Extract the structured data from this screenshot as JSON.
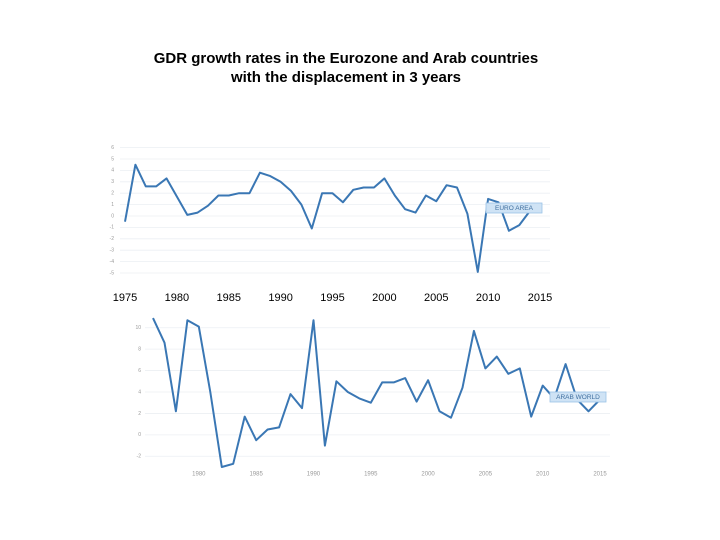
{
  "title": [
    "GDR growth rates in the Eurozone and Arab countries",
    "with the displacement in 3 years"
  ],
  "chart_data": [
    {
      "type": "line",
      "x": [
        1975,
        1976,
        1977,
        1978,
        1979,
        1980,
        1981,
        1982,
        1983,
        1984,
        1985,
        1986,
        1987,
        1988,
        1989,
        1990,
        1991,
        1992,
        1993,
        1994,
        1995,
        1996,
        1997,
        1998,
        1999,
        2000,
        2001,
        2002,
        2003,
        2004,
        2005,
        2006,
        2007,
        2008,
        2009,
        2010,
        2011,
        2012,
        2013,
        2014
      ],
      "series": [
        {
          "name": "EURO AREA",
          "color": "#3a77b4",
          "values": [
            -0.5,
            4.5,
            2.6,
            2.6,
            3.3,
            1.7,
            0.1,
            0.3,
            0.9,
            1.8,
            1.8,
            2.0,
            2.0,
            3.8,
            3.5,
            3.0,
            2.2,
            1.0,
            -1.1,
            2.0,
            2.0,
            1.2,
            2.3,
            2.5,
            2.5,
            3.3,
            1.8,
            0.6,
            0.3,
            1.8,
            1.3,
            2.7,
            2.5,
            0.2,
            -4.9,
            1.5,
            1.2,
            -1.3,
            -0.8,
            0.4
          ]
        }
      ],
      "xlim": [
        1975,
        2015
      ],
      "xticks": [
        1975,
        1980,
        1985,
        1990,
        1995,
        2000,
        2005,
        2010,
        2015
      ],
      "ylim": [
        -5,
        6
      ],
      "yticks": [
        -5,
        -4,
        -3,
        -2,
        -1,
        0,
        1,
        2,
        3,
        4,
        5,
        6
      ],
      "grid": true
    },
    {
      "type": "line",
      "x": [
        1976,
        1977,
        1978,
        1979,
        1980,
        1981,
        1982,
        1983,
        1984,
        1985,
        1986,
        1987,
        1988,
        1989,
        1990,
        1991,
        1992,
        1993,
        1994,
        1995,
        1996,
        1997,
        1998,
        1999,
        2000,
        2001,
        2002,
        2003,
        2004,
        2005,
        2006,
        2007,
        2008,
        2009,
        2010,
        2011,
        2012,
        2013,
        2014,
        2015
      ],
      "series": [
        {
          "name": "ARAB WORLD",
          "color": "#3a77b4",
          "values": [
            10.9,
            8.6,
            2.2,
            10.7,
            10.1,
            4.0,
            -3.0,
            -2.7,
            1.7,
            -0.5,
            0.5,
            0.7,
            3.8,
            2.5,
            10.7,
            -1.0,
            5.0,
            4.0,
            3.4,
            3.0,
            4.9,
            4.9,
            5.3,
            3.1,
            5.1,
            2.2,
            1.6,
            4.4,
            9.7,
            6.2,
            7.3,
            5.7,
            6.2,
            1.7,
            4.6,
            3.4,
            6.6,
            3.3,
            2.2,
            3.3
          ]
        }
      ],
      "xlim": [
        1976,
        2015
      ],
      "xticks": [
        1980,
        1985,
        1990,
        1995,
        2000,
        2005,
        2010,
        2015
      ],
      "ylim": [
        -3,
        11
      ],
      "yticks": [
        -2,
        0,
        2,
        4,
        6,
        8,
        10
      ],
      "grid": true
    }
  ]
}
